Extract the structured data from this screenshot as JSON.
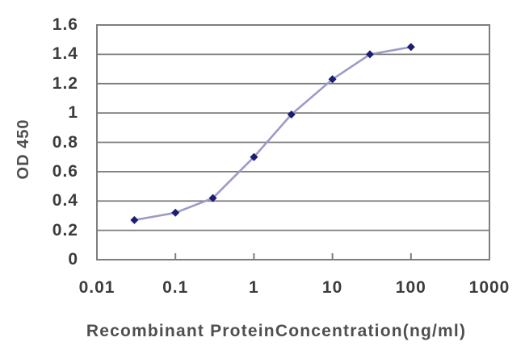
{
  "figure": {
    "background": "#ffffff"
  },
  "colors": {
    "grid": "#7d7d7d",
    "border": "#7d7d7d",
    "tick_text": "#3c3c3c",
    "axis_title_text": "#4f4f4f",
    "line": "#9b9bc6",
    "marker": "#1d1d72"
  },
  "chart_data": {
    "type": "line",
    "title": "",
    "xlabel": "Recombinant ProteinConcentration(ng/ml)",
    "ylabel": "OD 450",
    "x_scale": "log",
    "xlim": [
      0.01,
      1000
    ],
    "ylim": [
      0,
      1.6
    ],
    "x_ticks": [
      0.01,
      0.1,
      1,
      10,
      100,
      1000
    ],
    "x_tick_labels": [
      "0.01",
      "0.1",
      "1",
      "10",
      "100",
      "1000"
    ],
    "y_ticks": [
      0,
      0.2,
      0.4,
      0.6,
      0.8,
      1,
      1.2,
      1.4,
      1.6
    ],
    "y_tick_labels": [
      "0",
      "0.2",
      "0.4",
      "0.6",
      "0.8",
      "1",
      "1.2",
      "1.4",
      "1.6"
    ],
    "grid": "horizontal",
    "legend_position": "none",
    "series": [
      {
        "x": [
          0.03,
          0.1,
          0.3,
          1,
          3,
          10,
          30,
          100
        ],
        "y": [
          0.27,
          0.32,
          0.42,
          0.7,
          0.99,
          1.23,
          1.4,
          1.45
        ],
        "line_color": "#9b9bc6",
        "line_width": 2.6,
        "marker": "diamond",
        "marker_color": "#1d1d72",
        "marker_size": 5
      }
    ]
  }
}
